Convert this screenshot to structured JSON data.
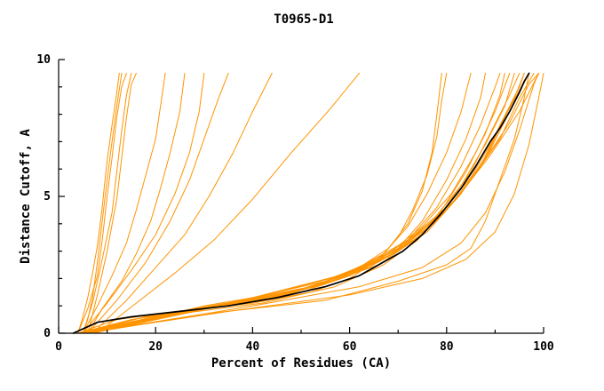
{
  "chart_data": {
    "type": "line",
    "title": "T0965-D1",
    "xlabel": "Percent of Residues (CA)",
    "ylabel": "Distance Cutoff, A",
    "xlim": [
      0,
      100
    ],
    "ylim": [
      0,
      10
    ],
    "x_major_ticks": [
      0,
      20,
      40,
      60,
      80,
      100
    ],
    "x_minor_step": 10,
    "y_major_ticks": [
      0,
      5,
      10
    ],
    "y_minor_step": 1,
    "grid": false,
    "legend": null,
    "colors": {
      "models": "#ff9400",
      "highlight": "#000000",
      "axis": "#000000",
      "background": "#ffffff"
    },
    "series_points": [
      [
        [
          4,
          0
        ],
        [
          5,
          0.6
        ],
        [
          6,
          1.3
        ],
        [
          7,
          2.2
        ],
        [
          8,
          3.2
        ],
        [
          9,
          4.6
        ],
        [
          9.5,
          5.5
        ],
        [
          10,
          6.3
        ],
        [
          11,
          7.6
        ],
        [
          12,
          8.8
        ],
        [
          12.5,
          9.5
        ]
      ],
      [
        [
          5,
          0
        ],
        [
          6,
          0.5
        ],
        [
          7,
          1.3
        ],
        [
          8,
          2.6
        ],
        [
          9,
          4.1
        ],
        [
          10,
          5.6
        ],
        [
          11,
          7.0
        ],
        [
          12,
          8.3
        ],
        [
          13,
          9.5
        ]
      ],
      [
        [
          4,
          0
        ],
        [
          6,
          0.9
        ],
        [
          8,
          2.1
        ],
        [
          9,
          3.4
        ],
        [
          10,
          5.0
        ],
        [
          11,
          6.4
        ],
        [
          12,
          7.9
        ],
        [
          13,
          9.0
        ],
        [
          14,
          9.5
        ]
      ],
      [
        [
          5,
          0
        ],
        [
          7,
          1.1
        ],
        [
          9,
          2.7
        ],
        [
          11,
          4.4
        ],
        [
          12,
          5.9
        ],
        [
          13,
          7.4
        ],
        [
          14,
          8.7
        ],
        [
          15,
          9.5
        ]
      ],
      [
        [
          6,
          0
        ],
        [
          8,
          1.4
        ],
        [
          10,
          3.0
        ],
        [
          12,
          4.9
        ],
        [
          13,
          6.4
        ],
        [
          14,
          7.9
        ],
        [
          15,
          9.1
        ],
        [
          16,
          9.5
        ]
      ],
      [
        [
          5,
          0
        ],
        [
          8,
          1.0
        ],
        [
          11,
          2.1
        ],
        [
          14,
          3.3
        ],
        [
          16,
          4.5
        ],
        [
          18,
          5.8
        ],
        [
          20,
          7.1
        ],
        [
          21,
          8.3
        ],
        [
          22,
          9.5
        ]
      ],
      [
        [
          6,
          0
        ],
        [
          9,
          0.9
        ],
        [
          13,
          1.9
        ],
        [
          16,
          2.9
        ],
        [
          19,
          4.1
        ],
        [
          21,
          5.3
        ],
        [
          23,
          6.6
        ],
        [
          25,
          8.1
        ],
        [
          26,
          9.5
        ]
      ],
      [
        [
          5,
          0
        ],
        [
          10,
          1.1
        ],
        [
          15,
          2.3
        ],
        [
          20,
          3.6
        ],
        [
          24,
          5.1
        ],
        [
          27,
          6.6
        ],
        [
          29,
          8.1
        ],
        [
          30,
          9.5
        ]
      ],
      [
        [
          6,
          0
        ],
        [
          12,
          1.2
        ],
        [
          18,
          2.6
        ],
        [
          23,
          4.1
        ],
        [
          27,
          5.6
        ],
        [
          30,
          7.1
        ],
        [
          33,
          8.6
        ],
        [
          35,
          9.5
        ]
      ],
      [
        [
          7,
          0
        ],
        [
          14,
          1.2
        ],
        [
          20,
          2.4
        ],
        [
          26,
          3.6
        ],
        [
          31,
          5.0
        ],
        [
          36,
          6.6
        ],
        [
          40,
          8.1
        ],
        [
          44,
          9.5
        ]
      ],
      [
        [
          8,
          0
        ],
        [
          16,
          1.1
        ],
        [
          24,
          2.2
        ],
        [
          32,
          3.4
        ],
        [
          40,
          4.9
        ],
        [
          48,
          6.6
        ],
        [
          56,
          8.2
        ],
        [
          62,
          9.5
        ]
      ],
      [
        [
          4,
          0
        ],
        [
          12,
          0.5
        ],
        [
          25,
          0.8
        ],
        [
          40,
          1.1
        ],
        [
          52,
          1.5
        ],
        [
          60,
          2.0
        ],
        [
          66,
          2.7
        ],
        [
          70,
          3.5
        ],
        [
          73,
          4.5
        ],
        [
          76,
          5.8
        ],
        [
          78,
          7.2
        ],
        [
          79,
          8.5
        ],
        [
          80,
          9.5
        ]
      ],
      [
        [
          4,
          0
        ],
        [
          18,
          0.6
        ],
        [
          35,
          1.0
        ],
        [
          50,
          1.5
        ],
        [
          60,
          2.1
        ],
        [
          67,
          2.9
        ],
        [
          72,
          3.9
        ],
        [
          76,
          5.1
        ],
        [
          80,
          6.6
        ],
        [
          83,
          8.1
        ],
        [
          85,
          9.5
        ]
      ],
      [
        [
          5,
          0
        ],
        [
          20,
          0.7
        ],
        [
          38,
          1.1
        ],
        [
          52,
          1.7
        ],
        [
          62,
          2.3
        ],
        [
          70,
          3.1
        ],
        [
          75,
          4.1
        ],
        [
          80,
          5.6
        ],
        [
          84,
          7.1
        ],
        [
          87,
          8.6
        ],
        [
          88,
          9.5
        ]
      ],
      [
        [
          5,
          0
        ],
        [
          22,
          0.7
        ],
        [
          40,
          1.2
        ],
        [
          55,
          1.8
        ],
        [
          65,
          2.6
        ],
        [
          72,
          3.4
        ],
        [
          78,
          4.6
        ],
        [
          83,
          6.1
        ],
        [
          87,
          7.6
        ],
        [
          90,
          9.0
        ],
        [
          91,
          9.5
        ]
      ],
      [
        [
          4,
          0
        ],
        [
          25,
          0.8
        ],
        [
          45,
          1.3
        ],
        [
          58,
          2.0
        ],
        [
          68,
          2.9
        ],
        [
          75,
          3.9
        ],
        [
          81,
          5.1
        ],
        [
          86,
          6.6
        ],
        [
          90,
          8.1
        ],
        [
          93,
          9.5
        ]
      ],
      [
        [
          5,
          0
        ],
        [
          28,
          0.9
        ],
        [
          48,
          1.5
        ],
        [
          62,
          2.3
        ],
        [
          72,
          3.3
        ],
        [
          79,
          4.4
        ],
        [
          85,
          5.9
        ],
        [
          89,
          7.3
        ],
        [
          93,
          8.7
        ],
        [
          95,
          9.5
        ]
      ],
      [
        [
          6,
          0
        ],
        [
          30,
          1.0
        ],
        [
          50,
          1.6
        ],
        [
          64,
          2.4
        ],
        [
          74,
          3.5
        ],
        [
          81,
          4.7
        ],
        [
          87,
          6.1
        ],
        [
          91,
          7.6
        ],
        [
          95,
          9.0
        ],
        [
          96,
          9.5
        ]
      ],
      [
        [
          5,
          0
        ],
        [
          32,
          1.0
        ],
        [
          52,
          1.7
        ],
        [
          66,
          2.6
        ],
        [
          76,
          3.7
        ],
        [
          83,
          5.1
        ],
        [
          89,
          6.7
        ],
        [
          93,
          8.1
        ],
        [
          97,
          9.5
        ]
      ],
      [
        [
          6,
          0
        ],
        [
          35,
          1.1
        ],
        [
          55,
          1.9
        ],
        [
          68,
          2.8
        ],
        [
          78,
          4.1
        ],
        [
          85,
          5.6
        ],
        [
          91,
          7.1
        ],
        [
          95,
          8.6
        ],
        [
          98,
          9.5
        ]
      ],
      [
        [
          6,
          0
        ],
        [
          38,
          1.2
        ],
        [
          58,
          2.1
        ],
        [
          70,
          3.1
        ],
        [
          80,
          4.5
        ],
        [
          87,
          6.1
        ],
        [
          93,
          7.7
        ],
        [
          97,
          9.1
        ],
        [
          99,
          9.5
        ]
      ],
      [
        [
          7,
          0
        ],
        [
          40,
          1.3
        ],
        [
          60,
          2.2
        ],
        [
          72,
          3.4
        ],
        [
          82,
          4.9
        ],
        [
          89,
          6.5
        ],
        [
          95,
          8.1
        ],
        [
          99,
          9.5
        ]
      ],
      [
        [
          5,
          0
        ],
        [
          30,
          0.7
        ],
        [
          55,
          1.2
        ],
        [
          70,
          1.9
        ],
        [
          80,
          2.5
        ],
        [
          85,
          3.1
        ],
        [
          88,
          4.1
        ],
        [
          91,
          5.6
        ],
        [
          94,
          7.1
        ],
        [
          96,
          8.6
        ],
        [
          97,
          9.5
        ]
      ],
      [
        [
          6,
          0
        ],
        [
          40,
          1.0
        ],
        [
          62,
          1.7
        ],
        [
          75,
          2.4
        ],
        [
          83,
          3.3
        ],
        [
          88,
          4.4
        ],
        [
          92,
          5.9
        ],
        [
          95,
          7.4
        ],
        [
          98,
          9.1
        ],
        [
          99,
          9.5
        ]
      ],
      [
        [
          5,
          0
        ],
        [
          35,
          0.8
        ],
        [
          60,
          1.4
        ],
        [
          75,
          2.0
        ],
        [
          84,
          2.7
        ],
        [
          90,
          3.7
        ],
        [
          94,
          5.1
        ],
        [
          97,
          6.9
        ],
        [
          99,
          8.6
        ],
        [
          100,
          9.5
        ]
      ],
      [
        [
          4,
          0
        ],
        [
          15,
          0.5
        ],
        [
          30,
          0.9
        ],
        [
          44,
          1.3
        ],
        [
          54,
          1.8
        ],
        [
          62,
          2.4
        ],
        [
          68,
          3.1
        ],
        [
          72,
          4.0
        ],
        [
          75,
          5.2
        ],
        [
          77,
          6.6
        ],
        [
          78,
          8.0
        ],
        [
          79,
          9.5
        ]
      ],
      [
        [
          5,
          0
        ],
        [
          20,
          0.6
        ],
        [
          42,
          1.1
        ],
        [
          57,
          1.7
        ],
        [
          67,
          2.5
        ],
        [
          74,
          3.4
        ],
        [
          79,
          4.5
        ],
        [
          84,
          5.9
        ],
        [
          88,
          7.3
        ],
        [
          91,
          8.7
        ],
        [
          92,
          9.5
        ]
      ],
      [
        [
          6,
          0
        ],
        [
          33,
          1.0
        ],
        [
          53,
          1.7
        ],
        [
          66,
          2.5
        ],
        [
          75,
          3.6
        ],
        [
          82,
          4.9
        ],
        [
          88,
          6.4
        ],
        [
          92,
          7.9
        ],
        [
          96,
          9.2
        ],
        [
          97,
          9.5
        ]
      ],
      [
        [
          5,
          0
        ],
        [
          26,
          0.8
        ],
        [
          46,
          1.4
        ],
        [
          60,
          2.1
        ],
        [
          70,
          3.0
        ],
        [
          77,
          4.1
        ],
        [
          83,
          5.4
        ],
        [
          88,
          6.9
        ],
        [
          92,
          8.3
        ],
        [
          94,
          9.5
        ]
      ],
      [
        [
          7,
          0
        ],
        [
          36,
          1.1
        ],
        [
          56,
          2.0
        ],
        [
          69,
          2.9
        ],
        [
          78,
          4.2
        ],
        [
          85,
          5.7
        ],
        [
          90,
          7.2
        ],
        [
          94,
          8.6
        ],
        [
          96,
          9.5
        ]
      ]
    ],
    "highlight_points": [
      [
        3,
        0
      ],
      [
        8,
        0.4
      ],
      [
        15,
        0.6
      ],
      [
        25,
        0.8
      ],
      [
        35,
        1.0
      ],
      [
        45,
        1.3
      ],
      [
        55,
        1.7
      ],
      [
        62,
        2.1
      ],
      [
        67,
        2.6
      ],
      [
        71,
        3.0
      ],
      [
        75,
        3.6
      ],
      [
        79,
        4.4
      ],
      [
        83,
        5.3
      ],
      [
        86,
        6.1
      ],
      [
        89,
        7.0
      ],
      [
        91,
        7.5
      ],
      [
        93,
        8.1
      ],
      [
        95,
        8.8
      ],
      [
        96,
        9.2
      ],
      [
        97,
        9.5
      ]
    ]
  }
}
